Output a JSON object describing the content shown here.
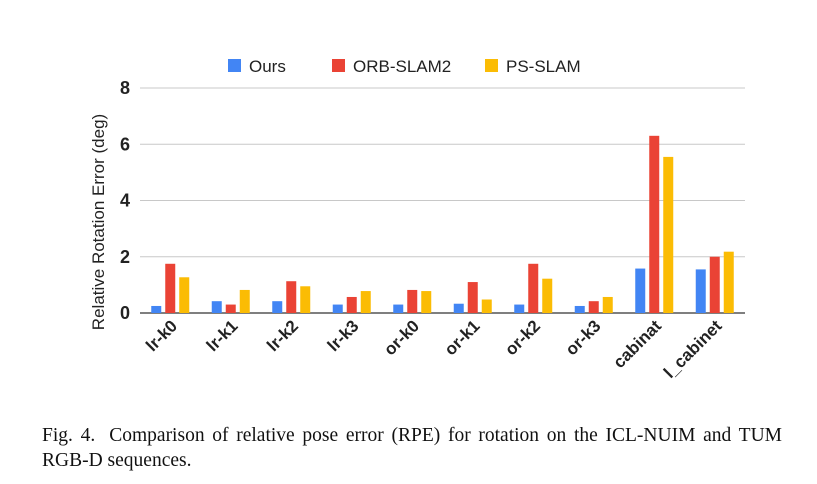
{
  "chart_data": {
    "type": "bar",
    "ylabel": "Relative Rotation Error (deg)",
    "xlabel": "",
    "ylim": [
      0,
      8
    ],
    "yticks": [
      "0",
      "2",
      "4",
      "6",
      "8"
    ],
    "grid": true,
    "legend_position": "top",
    "categories": [
      "lr-k0",
      "lr-k1",
      "lr-k2",
      "lr-k3",
      "or-k0",
      "or-k1",
      "or-k2",
      "or-k3",
      "cabinat",
      "l_cabinet"
    ],
    "series": [
      {
        "name": "Ours",
        "color": "#4285f4",
        "values": [
          0.25,
          0.42,
          0.42,
          0.3,
          0.3,
          0.33,
          0.3,
          0.25,
          1.58,
          1.55
        ]
      },
      {
        "name": "ORB-SLAM2",
        "color": "#ea4335",
        "values": [
          1.75,
          0.3,
          1.13,
          0.57,
          0.82,
          1.1,
          1.75,
          0.42,
          6.3,
          2.0
        ]
      },
      {
        "name": "PS-SLAM",
        "color": "#fbbc04",
        "values": [
          1.27,
          0.82,
          0.95,
          0.78,
          0.78,
          0.48,
          1.22,
          0.57,
          5.55,
          2.18
        ]
      }
    ]
  },
  "caption": {
    "label": "Fig. 4.",
    "text": "Comparison of relative pose error (RPE) for rotation on the ICL-NUIM and TUM RGB-D sequences."
  }
}
